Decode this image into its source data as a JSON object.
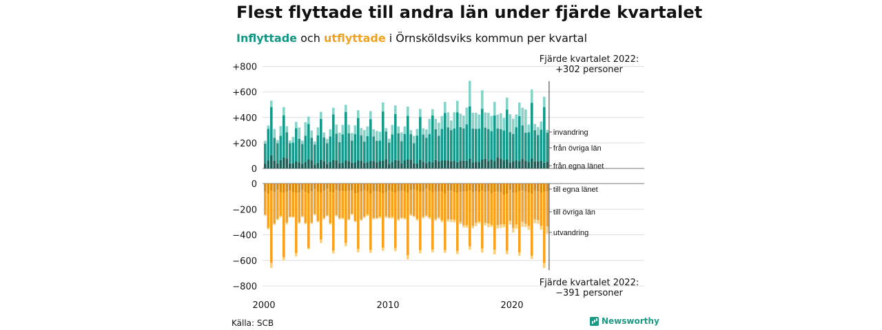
{
  "title": "Flest flyttade till andra län under fjärde kvartalet",
  "subtitle": {
    "in_word": "Inflyttade",
    "och": " och ",
    "out_word": "utflyttade",
    "rest": " i Örnsköldsviks kommun per kvartal"
  },
  "source": "Källa: SCB",
  "brand": "Newsworthy",
  "annotations": {
    "top_line1": "Fjärde kvartalet 2022:",
    "top_line2": "+302 personer",
    "bottom_line1": "Fjärde kvartalet 2022:",
    "bottom_line2": "−391 personer"
  },
  "colors": {
    "in_dark": "#1b5e56",
    "in_mid": "#15998a",
    "in_light": "#86d3c9",
    "out_dark": "#de8a0c",
    "out_mid": "#f7a11f",
    "out_light": "#fbd07c"
  },
  "chart_data": [
    {
      "type": "bar",
      "stacked": true,
      "panel": "inflyttade",
      "x_ticks": [
        "2000",
        "2010",
        "2020"
      ],
      "y_ticks": [
        "+800",
        "+600",
        "+400",
        "+200",
        "0"
      ],
      "ylim": [
        0,
        800
      ],
      "first_quarter": "2000 Q1",
      "last_quarter": "2022 Q4",
      "series": [
        {
          "name": "från egna länet",
          "values": [
            35,
            64,
            104,
            60,
            38,
            66,
            87,
            79,
            39,
            42,
            56,
            47,
            36,
            52,
            74,
            64,
            30,
            44,
            68,
            56,
            36,
            52,
            67,
            62,
            42,
            45,
            64,
            57,
            44,
            48,
            62,
            61,
            44,
            48,
            59,
            58,
            46,
            59,
            60,
            72,
            36,
            52,
            66,
            63,
            40,
            62,
            70,
            68,
            38,
            38,
            69,
            53,
            40,
            55,
            48,
            66,
            54,
            63,
            62,
            63,
            56,
            59,
            49,
            59,
            61,
            60,
            76,
            46,
            51,
            53,
            70,
            76,
            58,
            71,
            59,
            86,
            75,
            64,
            72,
            47,
            56,
            64,
            58,
            75,
            59,
            52,
            80,
            55,
            54,
            60,
            44,
            51
          ]
        },
        {
          "name": "från övriga län",
          "values": [
            160,
            246,
            378,
            181,
            159,
            191,
            330,
            205,
            159,
            160,
            259,
            186,
            156,
            204,
            274,
            176,
            158,
            216,
            320,
            188,
            161,
            199,
            357,
            211,
            164,
            222,
            378,
            219,
            175,
            221,
            334,
            198,
            166,
            206,
            328,
            193,
            170,
            159,
            387,
            218,
            167,
            216,
            360,
            212,
            174,
            209,
            342,
            201,
            160,
            220,
            335,
            213,
            201,
            215,
            367,
            242,
            203,
            248,
            372,
            259,
            245,
            254,
            392,
            265,
            253,
            286,
            411,
            267,
            260,
            259,
            398,
            244,
            251,
            222,
            356,
            227,
            234,
            234,
            389,
            238,
            215,
            259,
            353,
            262,
            222,
            232,
            435,
            244,
            209,
            244,
            438,
            230
          ]
        },
        {
          "name": "invandring",
          "values": [
            22,
            27,
            50,
            69,
            26,
            75,
            64,
            47,
            21,
            45,
            50,
            88,
            27,
            107,
            59,
            58,
            24,
            62,
            56,
            38,
            34,
            56,
            52,
            71,
            74,
            75,
            57,
            67,
            59,
            69,
            60,
            58,
            91,
            76,
            62,
            56,
            78,
            70,
            71,
            27,
            30,
            74,
            68,
            55,
            69,
            59,
            73,
            32,
            58,
            52,
            63,
            49,
            65,
            119,
            50,
            81,
            102,
            100,
            88,
            118,
            75,
            128,
            90,
            106,
            101,
            131,
            200,
            124,
            125,
            111,
            145,
            119,
            127,
            119,
            107,
            109,
            124,
            98,
            95,
            140,
            119,
            100,
            106,
            139,
            181,
            60,
            104,
            50,
            62,
            64,
            80,
            21
          ]
        }
      ]
    },
    {
      "type": "bar",
      "stacked": true,
      "panel": "utflyttade",
      "x_ticks": [
        "2000",
        "2010",
        "2020"
      ],
      "y_ticks": [
        "0",
        "−200",
        "−400",
        "−600",
        "−800"
      ],
      "ylim": [
        -800,
        0
      ],
      "first_quarter": "2000 Q1",
      "last_quarter": "2022 Q4",
      "series": [
        {
          "name": "till egna länet",
          "values": [
            -64,
            -80,
            -54,
            -68,
            -50,
            -67,
            -74,
            -64,
            -54,
            -68,
            -73,
            -71,
            -48,
            -66,
            -77,
            -61,
            -44,
            -64,
            -70,
            -57,
            -42,
            -65,
            -71,
            -52,
            -60,
            -58,
            -61,
            -54,
            -54,
            -76,
            -73,
            -63,
            -53,
            -62,
            -78,
            -59,
            -59,
            -66,
            -77,
            -68,
            -55,
            -66,
            -70,
            -59,
            -58,
            -61,
            -73,
            -53,
            -47,
            -57,
            -68,
            -62,
            -42,
            -56,
            -69,
            -62,
            -62,
            -62,
            -75,
            -56,
            -55,
            -65,
            -70,
            -65,
            -63,
            -59,
            -55,
            -68,
            -60,
            -67,
            -58,
            -68,
            -59,
            -79,
            -65,
            -63,
            -69,
            -86,
            -78,
            -50,
            -70,
            -70,
            -61,
            -54,
            -62,
            -71,
            -78,
            -58,
            -59,
            -72,
            -64,
            -60
          ]
        },
        {
          "name": "till övriga län",
          "values": [
            -178,
            -266,
            -565,
            -245,
            -226,
            -185,
            -501,
            -240,
            -204,
            -190,
            -470,
            -231,
            -206,
            -240,
            -427,
            -244,
            -194,
            -228,
            -367,
            -212,
            -205,
            -244,
            -453,
            -194,
            -210,
            -210,
            -402,
            -223,
            -182,
            -216,
            -438,
            -217,
            -205,
            -179,
            -441,
            -210,
            -210,
            -193,
            -424,
            -188,
            -209,
            -194,
            -434,
            -218,
            -209,
            -208,
            -487,
            -188,
            -206,
            -219,
            -452,
            -198,
            -207,
            -208,
            -446,
            -215,
            -202,
            -226,
            -445,
            -224,
            -226,
            -218,
            -457,
            -236,
            -262,
            -266,
            -435,
            -263,
            -247,
            -230,
            -450,
            -238,
            -254,
            -243,
            -452,
            -262,
            -251,
            -232,
            -447,
            -240,
            -277,
            -251,
            -476,
            -245,
            -253,
            -259,
            -486,
            -222,
            -226,
            -258,
            -556,
            -275
          ]
        },
        {
          "name": "utvandring",
          "values": [
            -10,
            -12,
            -40,
            -10,
            -10,
            -11,
            -25,
            -14,
            -8,
            -8,
            -25,
            -12,
            -9,
            -10,
            -10,
            -10,
            -10,
            -10,
            -28,
            -12,
            -9,
            -11,
            -22,
            -10,
            -10,
            -10,
            -26,
            -10,
            -9,
            -7,
            -26,
            -10,
            -10,
            -13,
            -23,
            -12,
            -8,
            -13,
            -24,
            -12,
            -9,
            -13,
            -25,
            -13,
            -9,
            -11,
            -33,
            -11,
            -9,
            -12,
            -25,
            -13,
            -10,
            -12,
            -22,
            -13,
            -13,
            -13,
            -21,
            -17,
            -20,
            -20,
            -24,
            -15,
            -18,
            -19,
            -27,
            -19,
            -24,
            -14,
            -31,
            -21,
            -29,
            -16,
            -35,
            -26,
            -26,
            -23,
            -27,
            -30,
            -36,
            -31,
            -26,
            -39,
            -25,
            -31,
            -25,
            -30,
            -29,
            -30,
            -39,
            -56
          ]
        }
      ]
    }
  ]
}
